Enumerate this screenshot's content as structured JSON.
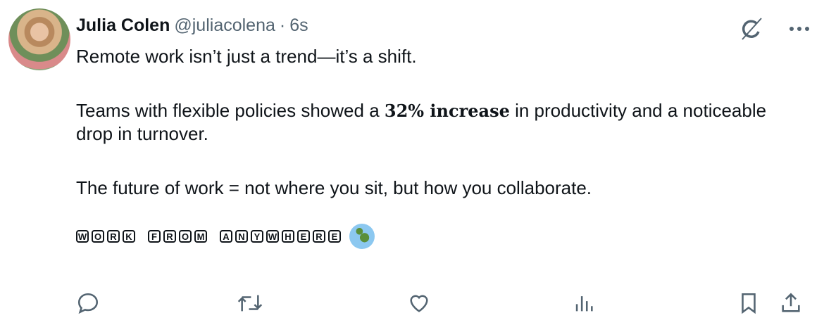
{
  "author": {
    "name": "Julia Colen",
    "handle": "@juliacolena",
    "separator": "·",
    "time": "6s"
  },
  "tweet": {
    "line1": "Remote work isn’t just a trend—it’s a shift.",
    "p2_before": "Teams with flexible policies showed a ",
    "p2_bold": "32% increase",
    "p2_after": " in productivity and a noticeable drop in turnover.",
    "p3": "The future of work = not where you sit, but how you collaborate.",
    "tag": "WORK FROM ANYWHERE",
    "emoji": "globe-africa-europe"
  },
  "icons": {
    "top": [
      "grok-icon",
      "more-icon"
    ],
    "actions": [
      "reply-icon",
      "retweet-icon",
      "like-icon",
      "views-icon",
      "bookmark-icon",
      "share-icon"
    ]
  },
  "colors": {
    "text": "#0f1419",
    "muted": "#536471"
  }
}
